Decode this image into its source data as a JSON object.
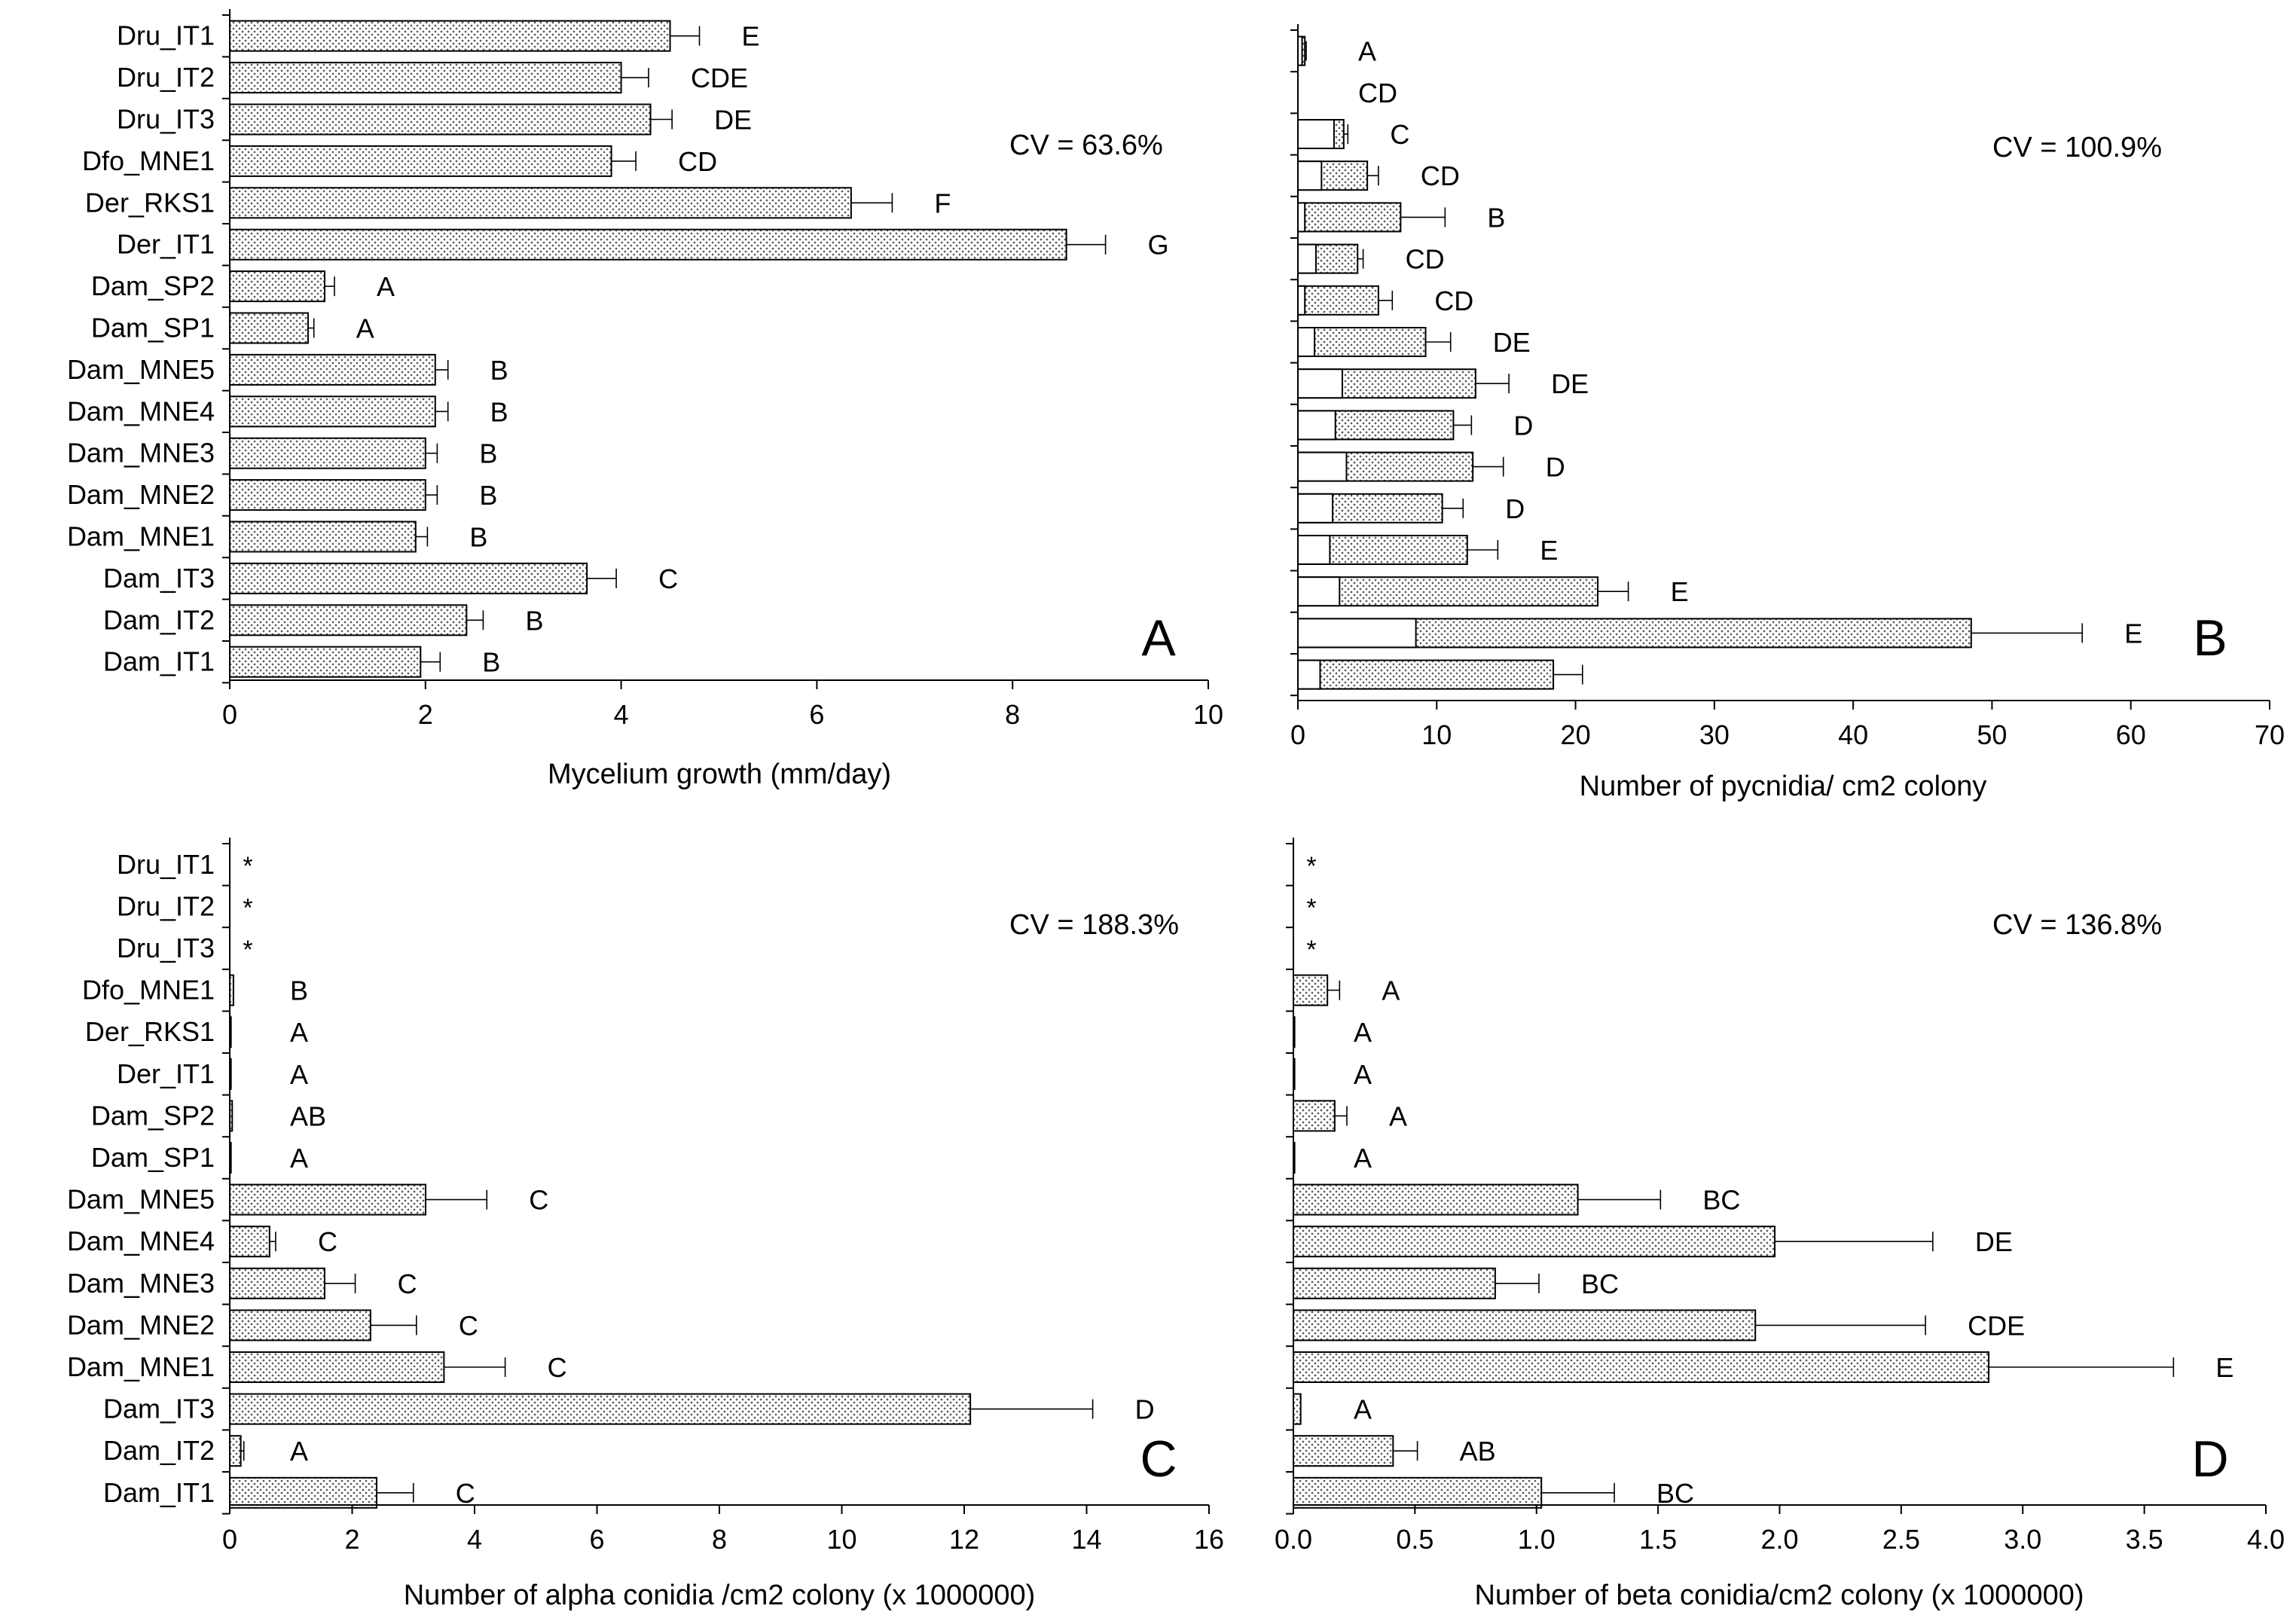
{
  "chart_data": [
    {
      "type": "bar",
      "panel": "A",
      "orientation": "horizontal",
      "xlabel": "Mycelium growth (mm/day)",
      "cv_label": "CV = 63.6%",
      "xlim": [
        0,
        10
      ],
      "xticks": [
        "0",
        "2",
        "4",
        "6",
        "8",
        "10"
      ],
      "categories": [
        "Dru_IT1",
        "Dru_IT2",
        "Dru_IT3",
        "Dfo_MNE1",
        "Der_RKS1",
        "Der_IT1",
        "Dam_SP2",
        "Dam_SP1",
        "Dam_MNE5",
        "Dam_MNE4",
        "Dam_MNE3",
        "Dam_MNE2",
        "Dam_MNE1",
        "Dam_IT3",
        "Dam_IT2",
        "Dam_IT1"
      ],
      "values": [
        4.5,
        4.0,
        4.3,
        3.9,
        6.35,
        8.55,
        0.97,
        0.8,
        2.1,
        2.1,
        2.0,
        2.0,
        1.9,
        3.65,
        2.42,
        1.95
      ],
      "errors": [
        0.3,
        0.28,
        0.22,
        0.25,
        0.42,
        0.4,
        0.1,
        0.06,
        0.13,
        0.13,
        0.12,
        0.12,
        0.12,
        0.3,
        0.17,
        0.2
      ],
      "letters": [
        "E",
        "CDE",
        "DE",
        "CD",
        "F",
        "G",
        "A",
        "A",
        "B",
        "B",
        "B",
        "B",
        "B",
        "C",
        "B",
        "B"
      ]
    },
    {
      "type": "bar",
      "panel": "B",
      "orientation": "horizontal",
      "xlabel": "Number of pycnidia/ cm2 colony",
      "cv_label": "CV = 100.9%",
      "xlim": [
        0,
        70
      ],
      "xticks": [
        "0",
        "10",
        "20",
        "30",
        "40",
        "50",
        "60",
        "70"
      ],
      "categories": [
        "Dru_IT1",
        "Dru_IT2",
        "Dru_IT3",
        "Dfo_MNE1",
        "Der_RKS1",
        "Der_IT1",
        "Dam_SP2",
        "Dam_SP1",
        "Dam_MNE5",
        "Dam_MNE4",
        "Dam_MNE3",
        "Dam_MNE2",
        "Dam_MNE1",
        "Dam_IT3",
        "Dam_IT2",
        "Dam_IT1"
      ],
      "values": [
        0.5,
        0,
        3.3,
        5.0,
        7.4,
        4.3,
        5.8,
        9.2,
        12.8,
        11.2,
        12.6,
        10.4,
        12.2,
        21.6,
        48.5,
        18.4
      ],
      "solid_part": [
        0.3,
        0,
        2.6,
        1.7,
        0.5,
        1.3,
        0.5,
        1.2,
        3.2,
        2.7,
        3.5,
        2.5,
        2.3,
        3.0,
        8.5,
        1.6
      ],
      "errors": [
        0.1,
        0,
        0.3,
        0.8,
        3.2,
        0.4,
        1.0,
        1.8,
        2.4,
        1.3,
        2.2,
        1.5,
        2.2,
        2.2,
        8.0,
        2.1
      ],
      "letters": [
        "A",
        "CD",
        "C",
        "CD",
        "B",
        "CD",
        "CD",
        "DE",
        "DE",
        "D",
        "D",
        "D",
        "E",
        "E",
        "E",
        ""
      ]
    },
    {
      "type": "bar",
      "panel": "C",
      "orientation": "horizontal",
      "xlabel": "Number of alpha conidia /cm2 colony (x 1000000)",
      "cv_label": "CV = 188.3%",
      "xlim": [
        0,
        16
      ],
      "xticks": [
        "0",
        "2",
        "4",
        "6",
        "8",
        "10",
        "12",
        "14",
        "16"
      ],
      "categories": [
        "Dru_IT1",
        "Dru_IT2",
        "Dru_IT3",
        "Dfo_MNE1",
        "Der_RKS1",
        "Der_IT1",
        "Dam_SP2",
        "Dam_SP1",
        "Dam_MNE5",
        "Dam_MNE4",
        "Dam_MNE3",
        "Dam_MNE2",
        "Dam_MNE1",
        "Dam_IT3",
        "Dam_IT2",
        "Dam_IT1"
      ],
      "values": [
        0,
        0,
        0,
        0.06,
        0.02,
        0.02,
        0.04,
        0.02,
        3.2,
        0.65,
        1.55,
        2.3,
        3.5,
        12.1,
        0.18,
        2.4
      ],
      "errors": [
        0,
        0,
        0,
        0,
        0,
        0,
        0,
        0,
        1.0,
        0.1,
        0.5,
        0.75,
        1.0,
        2.0,
        0.05,
        0.6
      ],
      "letters": [
        "*",
        "*",
        "*",
        "B",
        "A",
        "A",
        "AB",
        "A",
        "C",
        "C",
        "C",
        "C",
        "C",
        "D",
        "A",
        "C"
      ]
    },
    {
      "type": "bar",
      "panel": "D",
      "orientation": "horizontal",
      "xlabel": "Number of beta conidia/cm2 colony (x 1000000)",
      "cv_label": "CV = 136.8%",
      "xlim": [
        0,
        4
      ],
      "xticks": [
        "0.0",
        "0.5",
        "1.0",
        "1.5",
        "2.0",
        "2.5",
        "3.0",
        "3.5",
        "4.0"
      ],
      "categories": [
        "Dru_IT1",
        "Dru_IT2",
        "Dru_IT3",
        "Dfo_MNE1",
        "Der_RKS1",
        "Der_IT1",
        "Dam_SP2",
        "Dam_SP1",
        "Dam_MNE5",
        "Dam_MNE4",
        "Dam_MNE3",
        "Dam_MNE2",
        "Dam_MNE1",
        "Dam_IT3",
        "Dam_IT2",
        "Dam_IT1"
      ],
      "values": [
        0,
        0,
        0,
        0.14,
        0.005,
        0.005,
        0.17,
        0.005,
        1.17,
        1.98,
        0.83,
        1.9,
        2.86,
        0.03,
        0.41,
        1.02
      ],
      "errors": [
        0,
        0,
        0,
        0.05,
        0,
        0,
        0.05,
        0,
        0.34,
        0.65,
        0.18,
        0.7,
        0.76,
        0,
        0.1,
        0.3
      ],
      "letters": [
        "*",
        "*",
        "*",
        "A",
        "A",
        "A",
        "A",
        "A",
        "BC",
        "DE",
        "BC",
        "CDE",
        "E",
        "A",
        "AB",
        "BC"
      ]
    }
  ]
}
